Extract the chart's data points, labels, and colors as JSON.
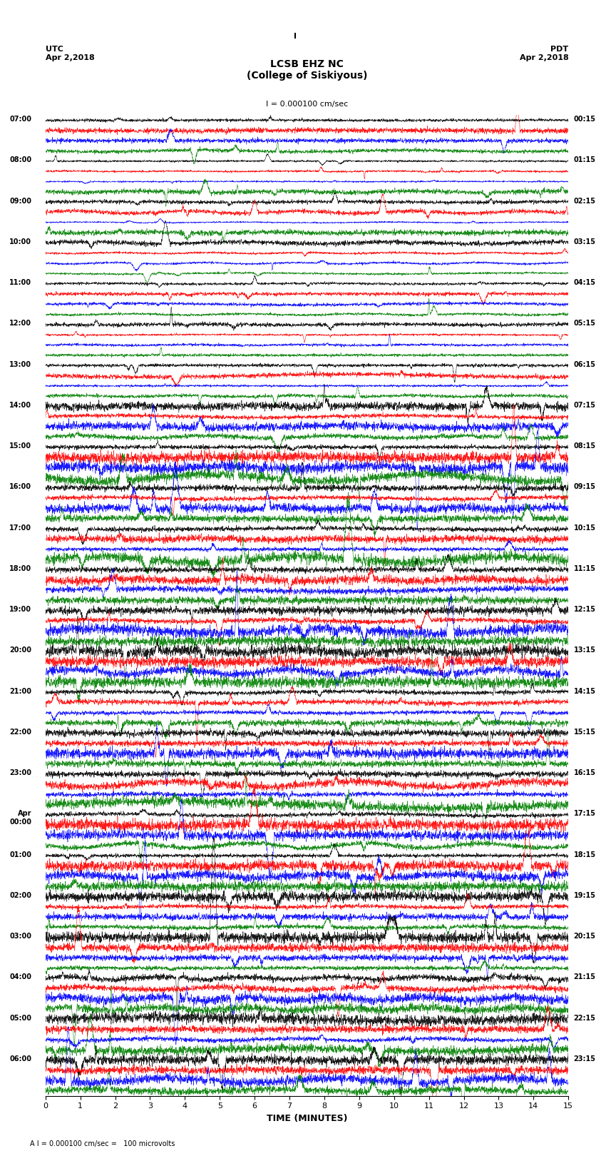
{
  "title_line1": "LCSB EHZ NC",
  "title_line2": "(College of Siskiyous)",
  "scale_label": "I = 0.000100 cm/sec",
  "bottom_label": "A I = 0.000100 cm/sec =   100 microvolts",
  "xlabel": "TIME (MINUTES)",
  "utc_label": "UTC",
  "pdt_label": "PDT",
  "utc_date": "Apr 2,2018",
  "pdt_date": "Apr 2,2018",
  "left_times": [
    "07:00",
    "08:00",
    "09:00",
    "10:00",
    "11:00",
    "12:00",
    "13:00",
    "14:00",
    "15:00",
    "16:00",
    "17:00",
    "18:00",
    "19:00",
    "20:00",
    "21:00",
    "22:00",
    "23:00",
    "Apr|00:00",
    "01:00",
    "02:00",
    "03:00",
    "04:00",
    "05:00",
    "06:00"
  ],
  "right_times": [
    "00:15",
    "01:15",
    "02:15",
    "03:15",
    "04:15",
    "05:15",
    "06:15",
    "07:15",
    "08:15",
    "09:15",
    "10:15",
    "11:15",
    "12:15",
    "13:15",
    "14:15",
    "15:15",
    "16:15",
    "17:15",
    "18:15",
    "19:15",
    "20:15",
    "21:15",
    "22:15",
    "23:15"
  ],
  "colors": [
    "black",
    "red",
    "blue",
    "green"
  ],
  "n_traces_per_hour": 4,
  "n_hours": 24,
  "xmin": 0,
  "xmax": 15,
  "bg_color": "white",
  "trace_amplitude_scale": 0.35
}
